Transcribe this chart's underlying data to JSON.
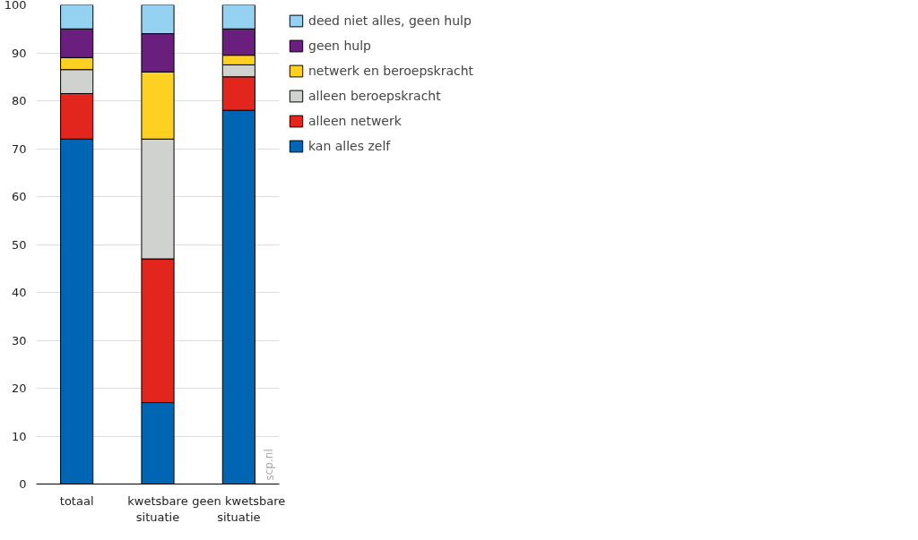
{
  "chart_data": {
    "type": "bar",
    "stacked": true,
    "categories": [
      "totaal",
      "kwetsbare situatie",
      "geen kwetsbare situatie"
    ],
    "series": [
      {
        "name": "kan alles zelf",
        "color": "#0066b3",
        "values": [
          72,
          17,
          78
        ]
      },
      {
        "name": "alleen netwerk",
        "color": "#e2261d",
        "values": [
          9.5,
          30,
          7
        ]
      },
      {
        "name": "alleen beroepskracht",
        "color": "#d0d2d0",
        "values": [
          5,
          25,
          2.5
        ]
      },
      {
        "name": "netwerk en beroepskracht",
        "color": "#fdd021",
        "values": [
          2.5,
          14,
          2
        ]
      },
      {
        "name": "geen hulp",
        "color": "#6a1f7f",
        "values": [
          6,
          8,
          5.5
        ]
      },
      {
        "name": "deed niet alles, geen hulp",
        "color": "#95d1f1",
        "values": [
          5,
          6,
          5
        ]
      }
    ],
    "ylim": [
      0,
      100
    ],
    "yticks": [
      0,
      10,
      20,
      30,
      40,
      50,
      60,
      70,
      80,
      90,
      100
    ],
    "grid": "y",
    "legend": "top right",
    "annotations": [
      "scp.nl"
    ]
  }
}
